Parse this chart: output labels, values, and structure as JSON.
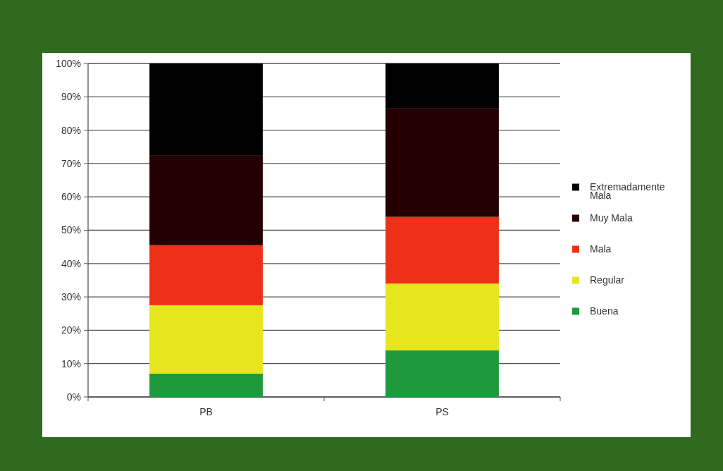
{
  "chart_data": {
    "type": "bar",
    "stacked": true,
    "categories": [
      "PB",
      "PS"
    ],
    "series": [
      {
        "name": "Buena",
        "color": "#1e9a3c",
        "values": [
          7,
          14
        ]
      },
      {
        "name": "Regular",
        "color": "#e6e61e",
        "values": [
          20.5,
          20
        ]
      },
      {
        "name": "Mala",
        "color": "#ee3018",
        "values": [
          18,
          20
        ]
      },
      {
        "name": "Muy Mala",
        "color": "#250003",
        "values": [
          27,
          32.5
        ]
      },
      {
        "name": "Extremadamente Mala",
        "color": "#000000",
        "values": [
          27.5,
          13.5
        ]
      }
    ],
    "ylim": [
      0,
      100
    ],
    "yticks": [
      {
        "value": 0,
        "label": "0%"
      },
      {
        "value": 10,
        "label": "10%"
      },
      {
        "value": 20,
        "label": "20%"
      },
      {
        "value": 30,
        "label": "30%"
      },
      {
        "value": 40,
        "label": "40%"
      },
      {
        "value": 50,
        "label": "50%"
      },
      {
        "value": 60,
        "label": "60%"
      },
      {
        "value": 70,
        "label": "70%"
      },
      {
        "value": 80,
        "label": "80%"
      },
      {
        "value": 90,
        "label": "90%"
      },
      {
        "value": 100,
        "label": "100%"
      }
    ],
    "grid": "y",
    "legend": "right"
  }
}
